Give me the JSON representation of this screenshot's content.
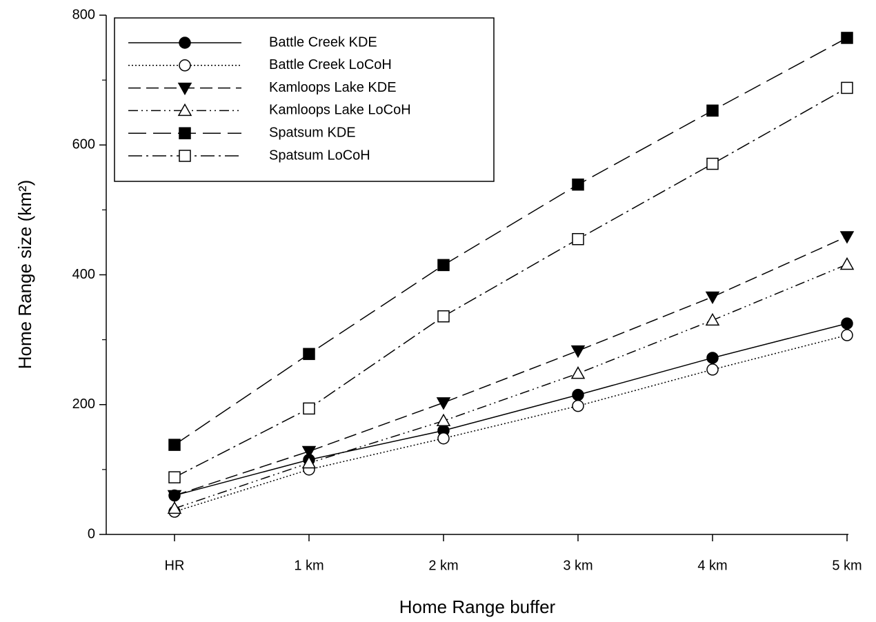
{
  "chart_data": {
    "type": "line",
    "xlabel": "Home Range buffer",
    "ylabel": "Home Range size (km²)",
    "categories": [
      "HR",
      "1 km",
      "2 km",
      "3 km",
      "4 km",
      "5 km"
    ],
    "ylim": [
      0,
      800
    ],
    "yticks": [
      0,
      200,
      400,
      600,
      800
    ],
    "yminorticks": [
      100,
      300,
      500,
      700
    ],
    "legend": "upper left",
    "series": [
      {
        "name": "Battle Creek KDE",
        "color": "#000000",
        "marker": "circle",
        "filled": true,
        "dash": "none",
        "values": [
          60,
          115,
          160,
          215,
          272,
          325
        ]
      },
      {
        "name": "Battle Creek LoCoH",
        "color": "#000000",
        "marker": "circle",
        "filled": false,
        "dash": "2 3",
        "values": [
          35,
          100,
          148,
          198,
          254,
          307
        ]
      },
      {
        "name": "Kamloops Lake KDE",
        "color": "#000000",
        "marker": "triangle-down",
        "filled": true,
        "dash": "18 8",
        "values": [
          60,
          128,
          203,
          283,
          366,
          459
        ]
      },
      {
        "name": "Kamloops Lake LoCoH",
        "color": "#000000",
        "marker": "triangle-up",
        "filled": false,
        "dash": "14 5 2 5 2 5",
        "values": [
          40,
          110,
          175,
          248,
          330,
          416
        ]
      },
      {
        "name": "Spatsum KDE",
        "color": "#000000",
        "marker": "square",
        "filled": true,
        "dash": "26 10",
        "values": [
          138,
          278,
          415,
          539,
          653,
          765
        ]
      },
      {
        "name": "Spatsum LoCoH",
        "color": "#000000",
        "marker": "square",
        "filled": false,
        "dash": "20 6 3 6",
        "values": [
          88,
          194,
          336,
          455,
          571,
          688
        ]
      }
    ]
  }
}
